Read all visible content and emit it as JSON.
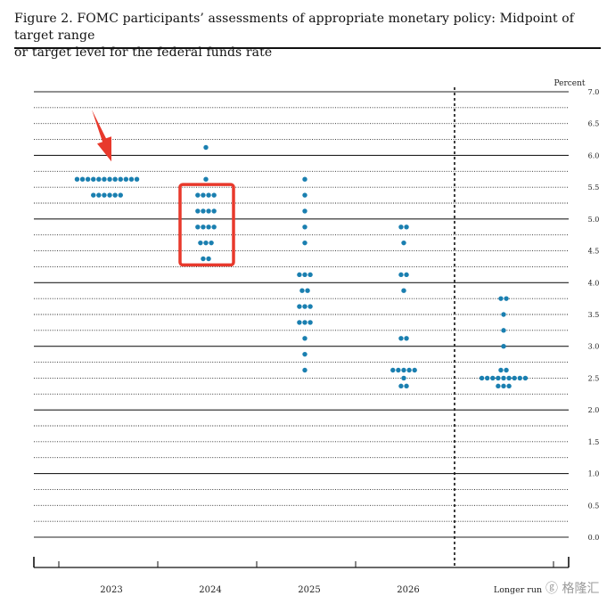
{
  "figure": {
    "title_line1": "Figure 2.  FOMC participants’ assessments of appropriate monetary policy:  Midpoint of target range",
    "title_line2": "or target level for the federal funds rate"
  },
  "watermark": {
    "text": "格隆汇"
  },
  "chart_data": {
    "type": "scatter",
    "title": "FOMC participants’ assessments of appropriate monetary policy: Midpoint of target range or target level for the federal funds rate",
    "unit_label": "Percent",
    "categories": [
      "2023",
      "2024",
      "2025",
      "2026",
      "Longer run"
    ],
    "ylim": [
      0.0,
      7.0
    ],
    "y_ticks": [
      "0.0",
      "0.5",
      "1.0",
      "1.5",
      "2.0",
      "2.5",
      "3.0",
      "3.5",
      "4.0",
      "4.5",
      "5.0",
      "5.5",
      "6.0",
      "6.5",
      "7.0"
    ],
    "grid": "dotted every 0.25, solid every 1.0",
    "marker_color": "#1a7fb0",
    "dots": [
      {
        "category": "2023",
        "y": 5.625,
        "count": 12
      },
      {
        "category": "2023",
        "y": 5.375,
        "count": 6
      },
      {
        "category": "2024",
        "y": 6.125,
        "count": 1
      },
      {
        "category": "2024",
        "y": 5.625,
        "count": 1
      },
      {
        "category": "2024",
        "y": 5.375,
        "count": 4
      },
      {
        "category": "2024",
        "y": 5.125,
        "count": 4
      },
      {
        "category": "2024",
        "y": 4.875,
        "count": 4
      },
      {
        "category": "2024",
        "y": 4.625,
        "count": 3
      },
      {
        "category": "2024",
        "y": 4.375,
        "count": 2
      },
      {
        "category": "2025",
        "y": 5.625,
        "count": 1
      },
      {
        "category": "2025",
        "y": 5.375,
        "count": 1
      },
      {
        "category": "2025",
        "y": 5.125,
        "count": 1
      },
      {
        "category": "2025",
        "y": 4.875,
        "count": 1
      },
      {
        "category": "2025",
        "y": 4.625,
        "count": 1
      },
      {
        "category": "2025",
        "y": 4.125,
        "count": 3
      },
      {
        "category": "2025",
        "y": 3.875,
        "count": 2
      },
      {
        "category": "2025",
        "y": 3.625,
        "count": 3
      },
      {
        "category": "2025",
        "y": 3.375,
        "count": 3
      },
      {
        "category": "2025",
        "y": 3.125,
        "count": 1
      },
      {
        "category": "2025",
        "y": 2.875,
        "count": 1
      },
      {
        "category": "2025",
        "y": 2.625,
        "count": 1
      },
      {
        "category": "2026",
        "y": 4.875,
        "count": 2
      },
      {
        "category": "2026",
        "y": 4.625,
        "count": 1
      },
      {
        "category": "2026",
        "y": 4.125,
        "count": 2
      },
      {
        "category": "2026",
        "y": 3.875,
        "count": 1
      },
      {
        "category": "2026",
        "y": 3.125,
        "count": 2
      },
      {
        "category": "2026",
        "y": 2.625,
        "count": 5
      },
      {
        "category": "2026",
        "y": 2.5,
        "count": 1
      },
      {
        "category": "2026",
        "y": 2.375,
        "count": 2
      },
      {
        "category": "Longer run",
        "y": 3.75,
        "count": 2
      },
      {
        "category": "Longer run",
        "y": 3.5,
        "count": 1
      },
      {
        "category": "Longer run",
        "y": 3.25,
        "count": 1
      },
      {
        "category": "Longer run",
        "y": 3.0,
        "count": 1
      },
      {
        "category": "Longer run",
        "y": 2.625,
        "count": 2
      },
      {
        "category": "Longer run",
        "y": 2.5,
        "count": 9
      },
      {
        "category": "Longer run",
        "y": 2.375,
        "count": 3
      }
    ],
    "annotations": [
      {
        "kind": "arrow",
        "color": "#e8392c",
        "points_to": {
          "category": "2023",
          "y": 5.625
        }
      },
      {
        "kind": "box",
        "color": "#e8392c",
        "category": "2024",
        "y_range": [
          4.25,
          5.5
        ]
      }
    ]
  }
}
